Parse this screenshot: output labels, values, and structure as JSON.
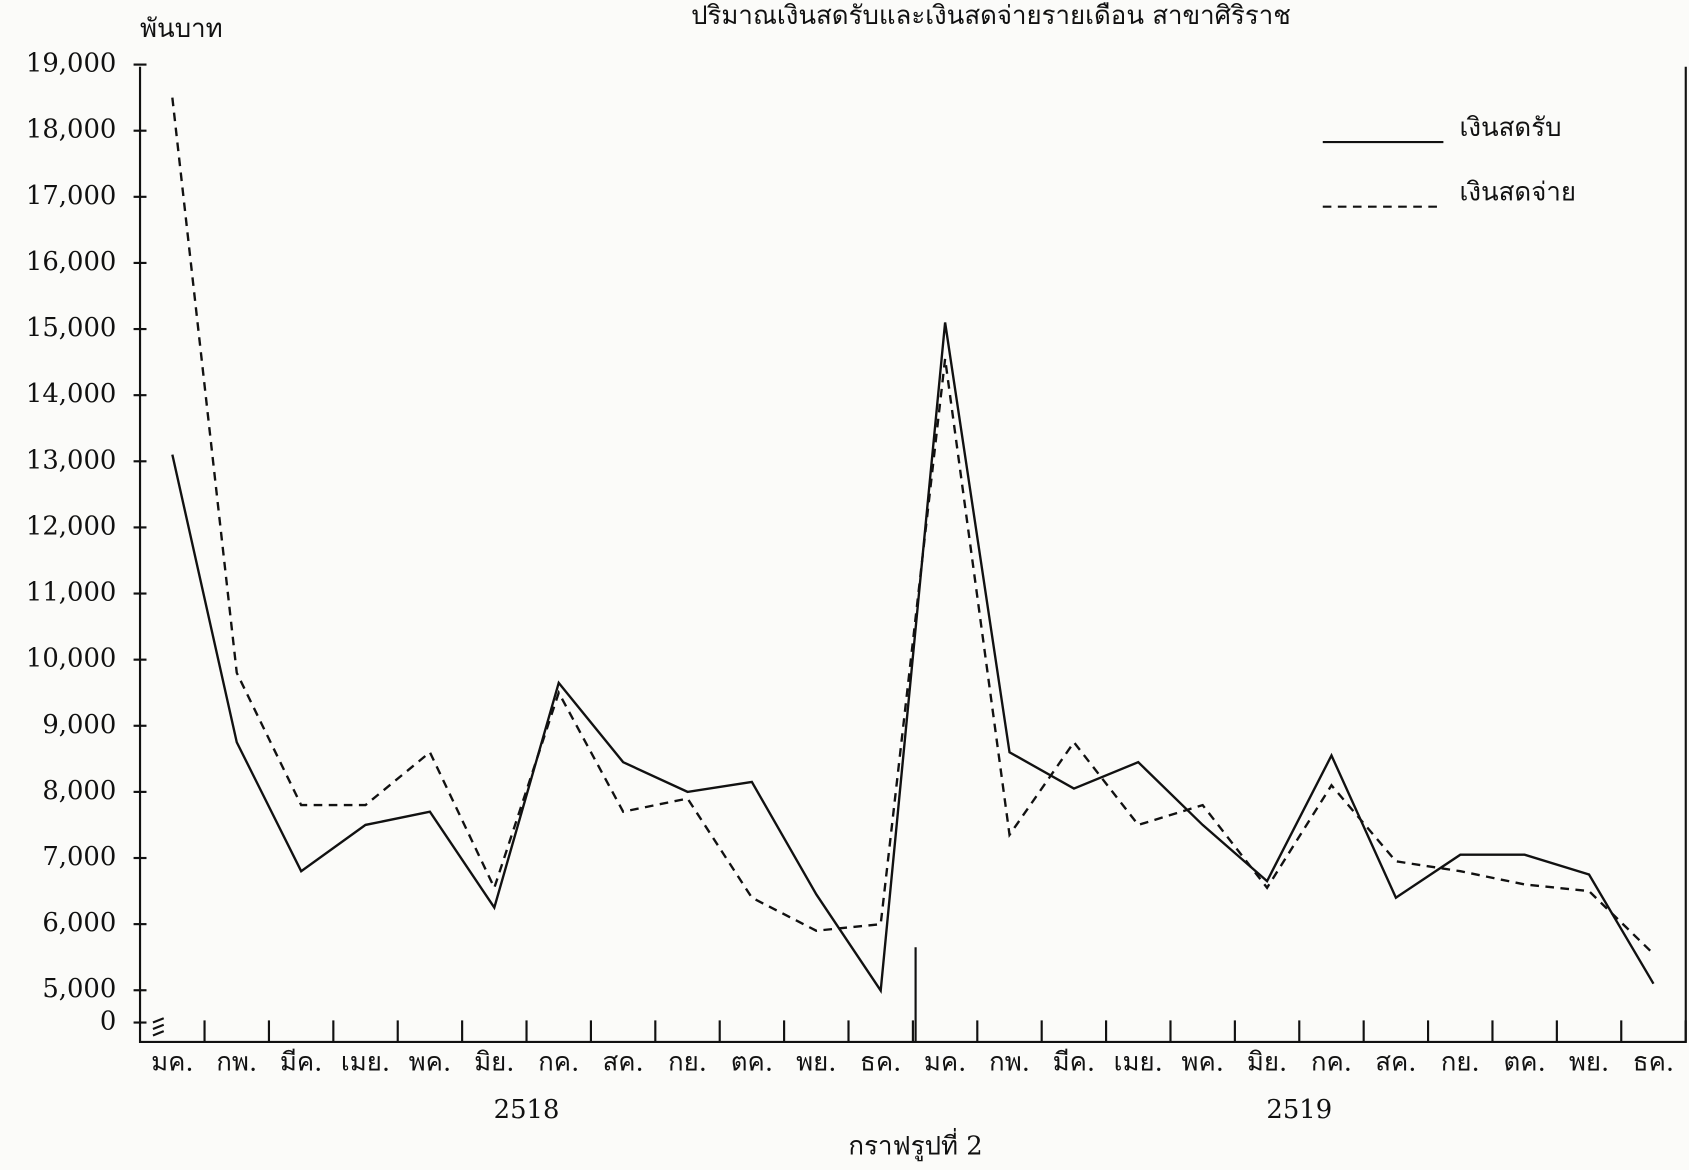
{
  "chart_data": {
    "type": "line",
    "title": "ปริมาณเงินสดรับและเงินสดจ่ายรายเดือน สาขาศิริราช",
    "y_label": "พันบาท",
    "caption": "กราฟรูปที่ 2",
    "categories": [
      "มค.",
      "กพ.",
      "มีค.",
      "เมย.",
      "พค.",
      "มิย.",
      "กค.",
      "สค.",
      "กย.",
      "ตค.",
      "พย.",
      "ธค.",
      "มค.",
      "กพ.",
      "มีค.",
      "เมย.",
      "พค.",
      "มิย.",
      "กค.",
      "สค.",
      "กย.",
      "ตค.",
      "พย.",
      "ธค."
    ],
    "x_groups": [
      "2518",
      "2519"
    ],
    "series": [
      {
        "name": "เงินสดรับ",
        "color": "#111111",
        "dash": false,
        "values": [
          13100,
          8750,
          6800,
          7500,
          7700,
          6250,
          9650,
          8450,
          8000,
          8150,
          6450,
          4950,
          15100,
          8600,
          8050,
          8450,
          7500,
          6650,
          8550,
          6400,
          7050,
          7050,
          6750,
          5100
        ]
      },
      {
        "name": "เงินสดจ่าย",
        "color": "#111111",
        "dash": true,
        "values": [
          18500,
          9800,
          7800,
          7800,
          8600,
          6550,
          9500,
          7700,
          7900,
          6400,
          5900,
          6000,
          14550,
          7350,
          8750,
          7500,
          7800,
          6550,
          8100,
          6950,
          6800,
          6600,
          6500,
          5550
        ]
      }
    ],
    "ylim": [
      0,
      19000
    ],
    "y_axis_break": true,
    "yticks": [
      0,
      {
        "value": 5000,
        "label": "5,000"
      },
      {
        "value": 6000,
        "label": "6,000"
      },
      {
        "value": 7000,
        "label": "7,000"
      },
      {
        "value": 8000,
        "label": "8,000"
      },
      {
        "value": 9000,
        "label": "9,000"
      },
      {
        "value": 10000,
        "label": "10,000"
      },
      {
        "value": 11000,
        "label": "11,000"
      },
      {
        "value": 12000,
        "label": "12,000"
      },
      {
        "value": 13000,
        "label": "13,000"
      },
      {
        "value": 14000,
        "label": "14,000"
      },
      {
        "value": 15000,
        "label": "15,000"
      },
      {
        "value": 16000,
        "label": "16,000"
      },
      {
        "value": 17000,
        "label": "17,000"
      },
      {
        "value": 18000,
        "label": "18,000"
      },
      {
        "value": 19000,
        "label": "19,000"
      }
    ],
    "legend": "top-right",
    "grid": false
  }
}
